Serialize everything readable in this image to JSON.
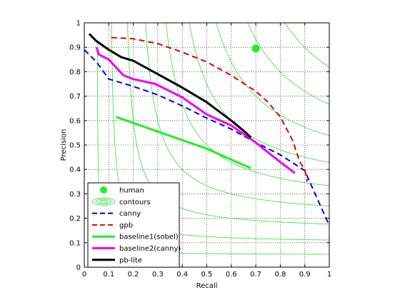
{
  "chart_data": {
    "type": "line",
    "title": "",
    "xlabel": "Recall",
    "ylabel": "Precision",
    "xlim": [
      0,
      1
    ],
    "ylim": [
      0,
      1
    ],
    "xticks": [
      "0",
      "0.1",
      "0.2",
      "0.3",
      "0.4",
      "0.5",
      "0.6",
      "0.7",
      "0.8",
      "0.9",
      "1"
    ],
    "yticks": [
      "0",
      "0.1",
      "0.2",
      "0.3",
      "0.4",
      "0.5",
      "0.6",
      "0.7",
      "0.8",
      "0.9",
      "1"
    ],
    "grid": true,
    "legend_position": "bottom-left",
    "f_contours": {
      "color": "#33dd33",
      "levels": [
        0.1,
        0.2,
        0.3,
        0.4,
        0.5,
        0.6,
        0.7,
        0.8,
        0.9
      ]
    },
    "human": {
      "name": "human",
      "x": 0.7,
      "y": 0.895,
      "color": "#22ee22"
    },
    "contours_legend": {
      "name": "contours",
      "color": "#33dd33"
    },
    "series": [
      {
        "name": "canny",
        "color": "#0000dd",
        "style": "dashed",
        "width": 2,
        "points": [
          [
            0.0,
            0.89
          ],
          [
            0.05,
            0.84
          ],
          [
            0.1,
            0.77
          ],
          [
            0.2,
            0.74
          ],
          [
            0.3,
            0.705
          ],
          [
            0.4,
            0.66
          ],
          [
            0.5,
            0.61
          ],
          [
            0.6,
            0.565
          ],
          [
            0.7,
            0.51
          ],
          [
            0.8,
            0.46
          ],
          [
            0.9,
            0.395
          ],
          [
            1.0,
            0.17
          ]
        ]
      },
      {
        "name": "gpb",
        "color": "#dd0000",
        "style": "dashed",
        "width": 2,
        "points": [
          [
            0.11,
            0.94
          ],
          [
            0.2,
            0.935
          ],
          [
            0.3,
            0.915
          ],
          [
            0.4,
            0.88
          ],
          [
            0.5,
            0.84
          ],
          [
            0.6,
            0.785
          ],
          [
            0.7,
            0.72
          ],
          [
            0.75,
            0.675
          ],
          [
            0.8,
            0.615
          ],
          [
            0.85,
            0.52
          ],
          [
            0.88,
            0.43
          ],
          [
            0.9,
            0.4
          ],
          [
            0.91,
            0.35
          ]
        ]
      },
      {
        "name": "baseline1(sobel)",
        "color": "#22ee22",
        "style": "solid",
        "width": 3,
        "points": [
          [
            0.13,
            0.615
          ],
          [
            0.2,
            0.59
          ],
          [
            0.3,
            0.555
          ],
          [
            0.4,
            0.52
          ],
          [
            0.5,
            0.485
          ],
          [
            0.6,
            0.44
          ],
          [
            0.68,
            0.405
          ]
        ]
      },
      {
        "name": "baseline2(canny)",
        "color": "#ee00ee",
        "style": "solid",
        "width": 3,
        "points": [
          [
            0.05,
            0.9
          ],
          [
            0.06,
            0.87
          ],
          [
            0.1,
            0.85
          ],
          [
            0.16,
            0.785
          ],
          [
            0.2,
            0.77
          ],
          [
            0.29,
            0.75
          ],
          [
            0.4,
            0.695
          ],
          [
            0.5,
            0.625
          ],
          [
            0.6,
            0.58
          ],
          [
            0.7,
            0.51
          ],
          [
            0.8,
            0.43
          ],
          [
            0.86,
            0.385
          ]
        ]
      },
      {
        "name": "pb-lite",
        "color": "#000000",
        "style": "solid",
        "width": 3,
        "points": [
          [
            0.02,
            0.955
          ],
          [
            0.05,
            0.925
          ],
          [
            0.1,
            0.89
          ],
          [
            0.15,
            0.86
          ],
          [
            0.2,
            0.845
          ],
          [
            0.3,
            0.79
          ],
          [
            0.4,
            0.735
          ],
          [
            0.5,
            0.675
          ],
          [
            0.6,
            0.6
          ],
          [
            0.66,
            0.55
          ],
          [
            0.68,
            0.53
          ]
        ]
      }
    ],
    "legend": [
      "human",
      "contours",
      "canny",
      "gpb",
      "baseline1(sobel)",
      "baseline2(canny)",
      "pb-lite"
    ]
  }
}
